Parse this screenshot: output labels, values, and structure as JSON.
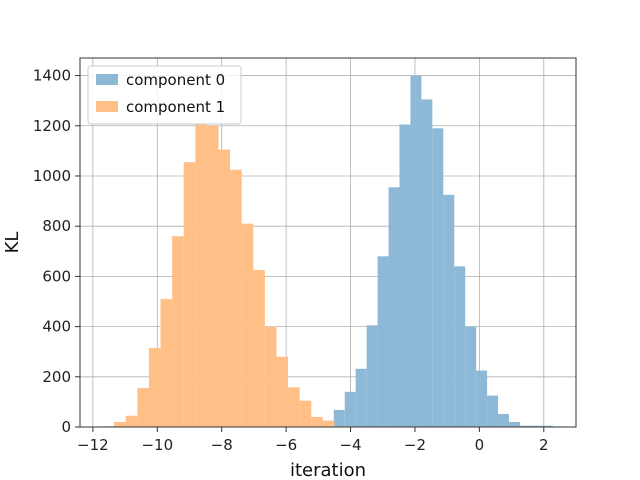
{
  "chart_data": {
    "type": "histogram",
    "xlabel": "iteration",
    "ylabel": "KL",
    "xlim": [
      -12.4,
      3.0
    ],
    "ylim": [
      0,
      1470
    ],
    "xticks": [
      -12,
      -10,
      -8,
      -6,
      -4,
      -2,
      0,
      2
    ],
    "yticks": [
      0,
      200,
      400,
      600,
      800,
      1000,
      1200,
      1400
    ],
    "grid": true,
    "legend_position": "top-left",
    "series": [
      {
        "name": "component 0",
        "color": "#8db9d7",
        "bins": [
          {
            "x0": -5.2,
            "x1": -4.86,
            "value": 10
          },
          {
            "x0": -4.86,
            "x1": -4.52,
            "value": 25
          },
          {
            "x0": -4.52,
            "x1": -4.18,
            "value": 68
          },
          {
            "x0": -4.18,
            "x1": -3.84,
            "value": 140
          },
          {
            "x0": -3.84,
            "x1": -3.5,
            "value": 232
          },
          {
            "x0": -3.5,
            "x1": -3.16,
            "value": 405
          },
          {
            "x0": -3.16,
            "x1": -2.82,
            "value": 680
          },
          {
            "x0": -2.82,
            "x1": -2.48,
            "value": 955
          },
          {
            "x0": -2.48,
            "x1": -2.14,
            "value": 1205
          },
          {
            "x0": -2.14,
            "x1": -1.8,
            "value": 1400
          },
          {
            "x0": -1.8,
            "x1": -1.46,
            "value": 1305
          },
          {
            "x0": -1.46,
            "x1": -1.12,
            "value": 1190
          },
          {
            "x0": -1.12,
            "x1": -0.78,
            "value": 925
          },
          {
            "x0": -0.78,
            "x1": -0.44,
            "value": 640
          },
          {
            "x0": -0.44,
            "x1": -0.1,
            "value": 400
          },
          {
            "x0": -0.1,
            "x1": 0.24,
            "value": 225
          },
          {
            "x0": 0.24,
            "x1": 0.58,
            "value": 125
          },
          {
            "x0": 0.58,
            "x1": 0.92,
            "value": 52
          },
          {
            "x0": 0.92,
            "x1": 1.26,
            "value": 20
          },
          {
            "x0": 1.26,
            "x1": 1.6,
            "value": 5
          },
          {
            "x0": 1.6,
            "x1": 1.94,
            "value": 5
          },
          {
            "x0": 1.94,
            "x1": 2.28,
            "value": 5
          }
        ]
      },
      {
        "name": "component 1",
        "color": "#ffbf87",
        "bins": [
          {
            "x0": -11.7,
            "x1": -11.34,
            "value": 3
          },
          {
            "x0": -11.34,
            "x1": -10.98,
            "value": 20
          },
          {
            "x0": -10.98,
            "x1": -10.62,
            "value": 45
          },
          {
            "x0": -10.62,
            "x1": -10.26,
            "value": 155
          },
          {
            "x0": -10.26,
            "x1": -9.9,
            "value": 315
          },
          {
            "x0": -9.9,
            "x1": -9.54,
            "value": 510
          },
          {
            "x0": -9.54,
            "x1": -9.18,
            "value": 760
          },
          {
            "x0": -9.18,
            "x1": -8.82,
            "value": 1055
          },
          {
            "x0": -8.82,
            "x1": -8.46,
            "value": 1210
          },
          {
            "x0": -8.46,
            "x1": -8.1,
            "value": 1200
          },
          {
            "x0": -8.1,
            "x1": -7.74,
            "value": 1105
          },
          {
            "x0": -7.74,
            "x1": -7.38,
            "value": 1025
          },
          {
            "x0": -7.38,
            "x1": -7.02,
            "value": 810
          },
          {
            "x0": -7.02,
            "x1": -6.66,
            "value": 625
          },
          {
            "x0": -6.66,
            "x1": -6.3,
            "value": 400
          },
          {
            "x0": -6.3,
            "x1": -5.94,
            "value": 280
          },
          {
            "x0": -5.94,
            "x1": -5.58,
            "value": 158
          },
          {
            "x0": -5.58,
            "x1": -5.22,
            "value": 105
          },
          {
            "x0": -5.22,
            "x1": -4.86,
            "value": 40
          },
          {
            "x0": -4.86,
            "x1": -4.5,
            "value": 25
          },
          {
            "x0": -4.5,
            "x1": -4.14,
            "value": 3
          }
        ]
      }
    ]
  }
}
